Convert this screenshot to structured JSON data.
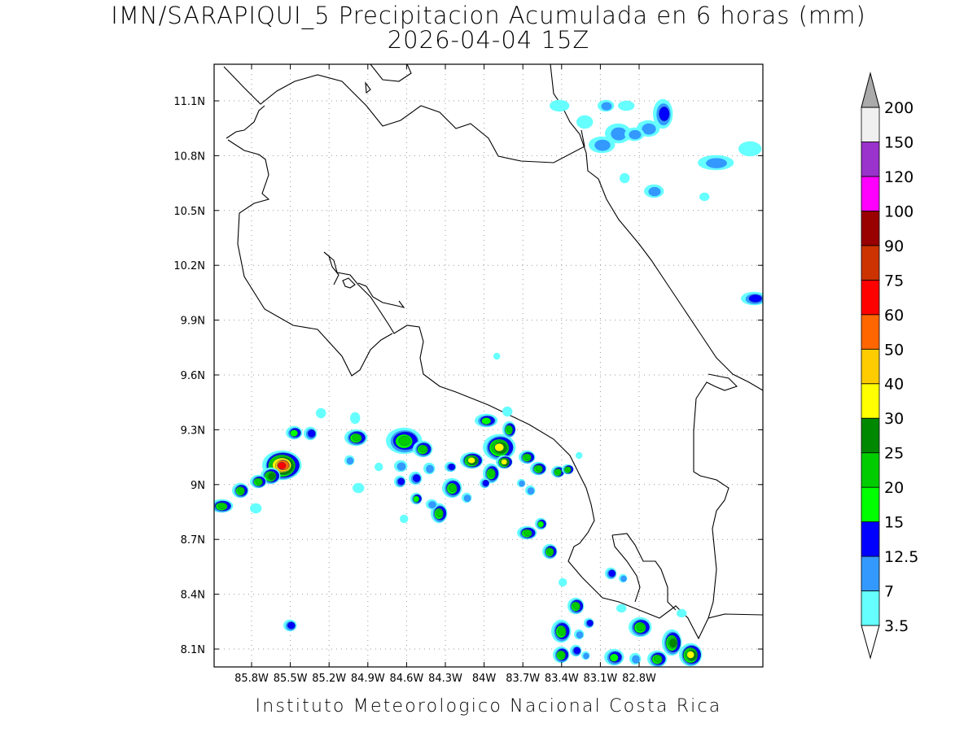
{
  "title": {
    "line1": "IMN/SARAPIQUI_5 Precipitacion Acumulada en 6 horas (mm)",
    "line2": "2026-04-04 15Z"
  },
  "credit": "Instituto Meteorologico Nacional Costa Rica",
  "axes": {
    "lon_labels": [
      "85.8W",
      "85.5W",
      "85.2W",
      "84.9W",
      "84.6W",
      "84.3W",
      "84W",
      "83.7W",
      "83.4W",
      "83.1W",
      "82.8W"
    ],
    "lat_labels": [
      "11.1N",
      "10.8N",
      "10.5N",
      "10.2N",
      "9.9N",
      "9.6N",
      "9.3N",
      "9N",
      "8.7N",
      "8.4N",
      "8.1N"
    ]
  },
  "colorbar": {
    "levels": [
      "3.5",
      "7",
      "12.5",
      "15",
      "20",
      "25",
      "30",
      "40",
      "50",
      "60",
      "75",
      "90",
      "100",
      "120",
      "150",
      "200"
    ],
    "colors": [
      "#66ffff",
      "#3399ff",
      "#0000ff",
      "#00ff00",
      "#00cc00",
      "#008800",
      "#ffff00",
      "#ffcc00",
      "#ff6600",
      "#ff0000",
      "#cc3300",
      "#990000",
      "#ff00ff",
      "#9933cc",
      "#f0f0f0",
      "#aaaaaa"
    ]
  }
}
